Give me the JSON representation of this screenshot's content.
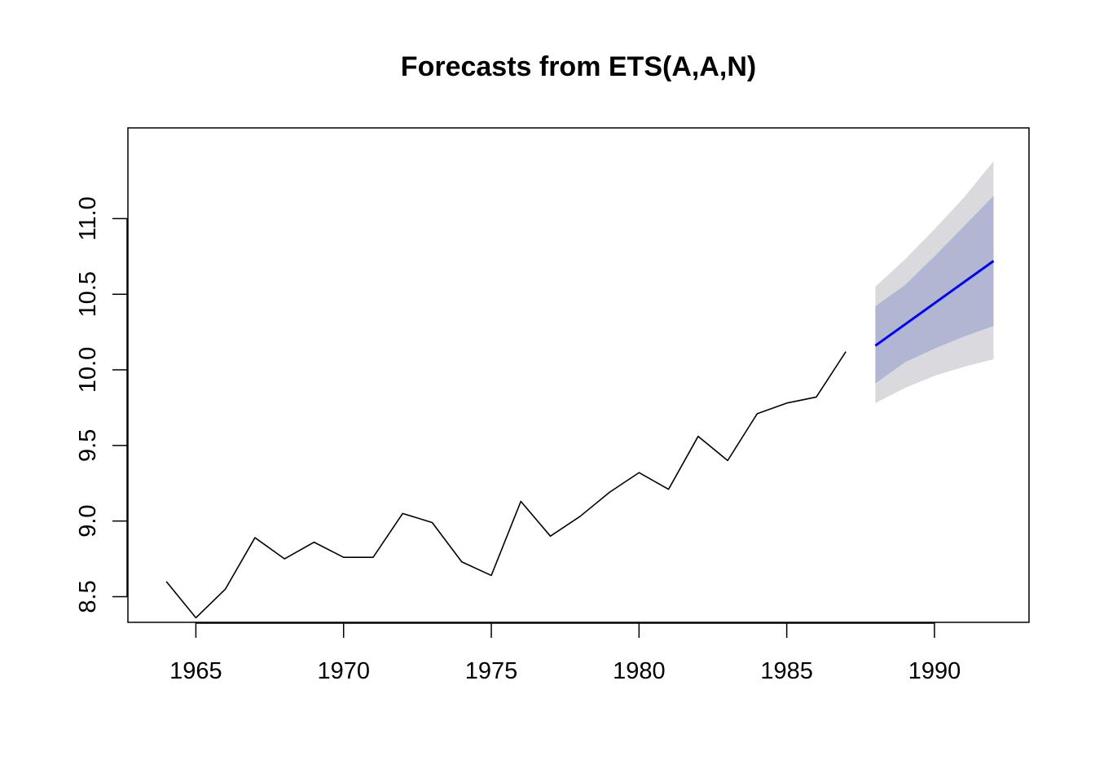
{
  "chart_data": {
    "type": "line",
    "title": "Forecasts from ETS(A,A,N)",
    "xlabel": "",
    "ylabel": "",
    "xlim": [
      1962.7,
      1993.2
    ],
    "ylim": [
      8.33,
      11.6
    ],
    "x_ticks": [
      1965,
      1970,
      1975,
      1980,
      1985,
      1990
    ],
    "x_tick_labels": [
      "1965",
      "1970",
      "1975",
      "1980",
      "1985",
      "1990"
    ],
    "y_ticks": [
      8.5,
      9.0,
      9.5,
      10.0,
      10.5,
      11.0
    ],
    "y_tick_labels": [
      "8.5",
      "9.0",
      "9.5",
      "10.0",
      "10.5",
      "11.0"
    ],
    "grid": false,
    "series": [
      {
        "role": "observed",
        "color": "#000000",
        "x": [
          1964,
          1965,
          1966,
          1967,
          1968,
          1969,
          1970,
          1971,
          1972,
          1973,
          1974,
          1975,
          1976,
          1977,
          1978,
          1979,
          1980,
          1981,
          1982,
          1983,
          1984,
          1985,
          1986,
          1987
        ],
        "values": [
          8.6,
          8.36,
          8.55,
          8.89,
          8.75,
          8.86,
          8.76,
          8.76,
          9.05,
          8.99,
          8.73,
          8.64,
          9.13,
          8.9,
          9.03,
          9.19,
          9.32,
          9.21,
          9.56,
          9.4,
          9.71,
          9.78,
          9.82,
          10.12
        ]
      },
      {
        "role": "forecast",
        "color": "#0000ff",
        "x": [
          1988,
          1989,
          1990,
          1991,
          1992
        ],
        "values": [
          10.16,
          10.3,
          10.44,
          10.58,
          10.72
        ]
      }
    ],
    "intervals": [
      {
        "level": 95,
        "color": "#dadade",
        "x": [
          1988,
          1989,
          1990,
          1991,
          1992
        ],
        "lower": [
          9.78,
          9.88,
          9.96,
          10.02,
          10.07
        ],
        "upper": [
          10.55,
          10.73,
          10.93,
          11.14,
          11.38
        ]
      },
      {
        "level": 80,
        "color": "#b1b6d3",
        "x": [
          1988,
          1989,
          1990,
          1991,
          1992
        ],
        "lower": [
          9.91,
          10.05,
          10.14,
          10.22,
          10.29
        ],
        "upper": [
          10.42,
          10.56,
          10.75,
          10.95,
          11.15
        ]
      }
    ]
  }
}
